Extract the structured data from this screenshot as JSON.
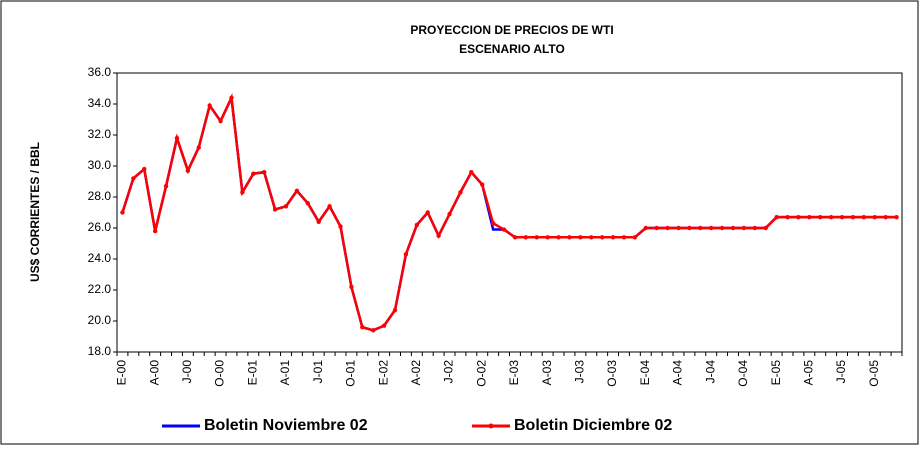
{
  "chart_data": {
    "type": "line",
    "title": "PROYECCION DE PRECIOS DE WTI",
    "subtitle": "ESCENARIO ALTO",
    "y_label": "US$ CORRIENTES / BBL",
    "categories": [
      "E-00",
      null,
      null,
      "A-00",
      null,
      null,
      "J-00",
      null,
      null,
      "O-00",
      null,
      null,
      "E-01",
      null,
      null,
      "A-01",
      null,
      null,
      "J-01",
      null,
      null,
      "O-01",
      null,
      null,
      "E-02",
      null,
      null,
      "A-02",
      null,
      null,
      "J-02",
      null,
      null,
      "O-02",
      null,
      null,
      "E-03",
      null,
      null,
      "A-03",
      null,
      null,
      "J-03",
      null,
      null,
      "O-03",
      null,
      null,
      "E-04",
      null,
      null,
      "A-04",
      null,
      null,
      "J-04",
      null,
      null,
      "O-04",
      null,
      null,
      "E-05",
      null,
      null,
      "A-05",
      null,
      null,
      "J-05",
      null,
      null,
      "O-05",
      null,
      null
    ],
    "series": [
      {
        "name": "Boletin Noviembre 02",
        "color": "#0000ff",
        "markers": false,
        "values": [
          27.0,
          29.2,
          29.8,
          25.8,
          28.7,
          31.8,
          29.7,
          31.2,
          33.9,
          32.9,
          34.4,
          28.3,
          29.5,
          29.6,
          27.2,
          27.4,
          28.4,
          27.6,
          26.4,
          27.4,
          26.1,
          22.2,
          19.6,
          19.4,
          19.7,
          20.7,
          24.3,
          26.2,
          27.0,
          25.5,
          26.9,
          28.3,
          29.6,
          28.8,
          25.9,
          25.9,
          25.4,
          25.4,
          25.4,
          25.4,
          25.4,
          25.4,
          25.4,
          25.4,
          25.4,
          25.4,
          25.4,
          25.4,
          26.0,
          26.0,
          26.0,
          26.0,
          26.0,
          26.0,
          26.0,
          26.0,
          26.0,
          26.0,
          26.0,
          26.0,
          26.7,
          26.7,
          26.7,
          26.7,
          26.7,
          26.7,
          26.7,
          26.7,
          26.7,
          26.7,
          26.7,
          26.7
        ]
      },
      {
        "name": "Boletin Diciembre 02",
        "color": "#ff0000",
        "markers": true,
        "values": [
          27.0,
          29.2,
          29.8,
          25.8,
          28.7,
          31.8,
          29.7,
          31.2,
          33.9,
          32.9,
          34.4,
          28.3,
          29.5,
          29.6,
          27.2,
          27.4,
          28.4,
          27.6,
          26.4,
          27.4,
          26.1,
          22.2,
          19.6,
          19.4,
          19.7,
          20.7,
          24.3,
          26.2,
          27.0,
          25.5,
          26.9,
          28.3,
          29.6,
          28.8,
          26.3,
          25.9,
          25.4,
          25.4,
          25.4,
          25.4,
          25.4,
          25.4,
          25.4,
          25.4,
          25.4,
          25.4,
          25.4,
          25.4,
          26.0,
          26.0,
          26.0,
          26.0,
          26.0,
          26.0,
          26.0,
          26.0,
          26.0,
          26.0,
          26.0,
          26.0,
          26.7,
          26.7,
          26.7,
          26.7,
          26.7,
          26.7,
          26.7,
          26.7,
          26.7,
          26.7,
          26.7,
          26.7
        ]
      }
    ],
    "ylim": [
      18,
      36
    ],
    "yticks": [
      {
        "value": 18,
        "label": "18.0"
      },
      {
        "value": 20,
        "label": "20.0"
      },
      {
        "value": 22,
        "label": "22.0"
      },
      {
        "value": 24,
        "label": "24.0"
      },
      {
        "value": 26,
        "label": "26.0"
      },
      {
        "value": 28,
        "label": "28.0"
      },
      {
        "value": 30,
        "label": "30.0"
      },
      {
        "value": 32,
        "label": "32.0"
      },
      {
        "value": 34,
        "label": "34.0"
      },
      {
        "value": 36,
        "label": "36.0"
      }
    ],
    "grid": false,
    "legend": "bottom"
  }
}
